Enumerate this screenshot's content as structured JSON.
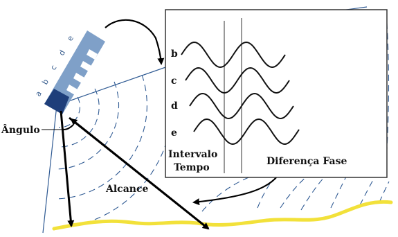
{
  "labels": {
    "angle": "Ângulo",
    "range": "Alcance",
    "time_interval_line1": "Intervalo",
    "time_interval_line2": "Tempo",
    "phase_difference": "Diferença Fase"
  },
  "waves": [
    {
      "label": "b"
    },
    {
      "label": "c"
    },
    {
      "label": "d"
    },
    {
      "label": "e"
    }
  ],
  "antenna_elements": [
    "a",
    "b",
    "c",
    "d",
    "e"
  ],
  "colors": {
    "seabed": "#f2e13a",
    "seabed_edge": "#e6c800",
    "fan_lines": "#2f5a93",
    "antenna": "#7fa0c8",
    "antenna_base": "#1e3e7a",
    "waves": "#111111",
    "panel_border": "#333333"
  },
  "icons": {
    "transducer": "multibeam-transducer-icon",
    "seabed": "seafloor-line-icon"
  }
}
